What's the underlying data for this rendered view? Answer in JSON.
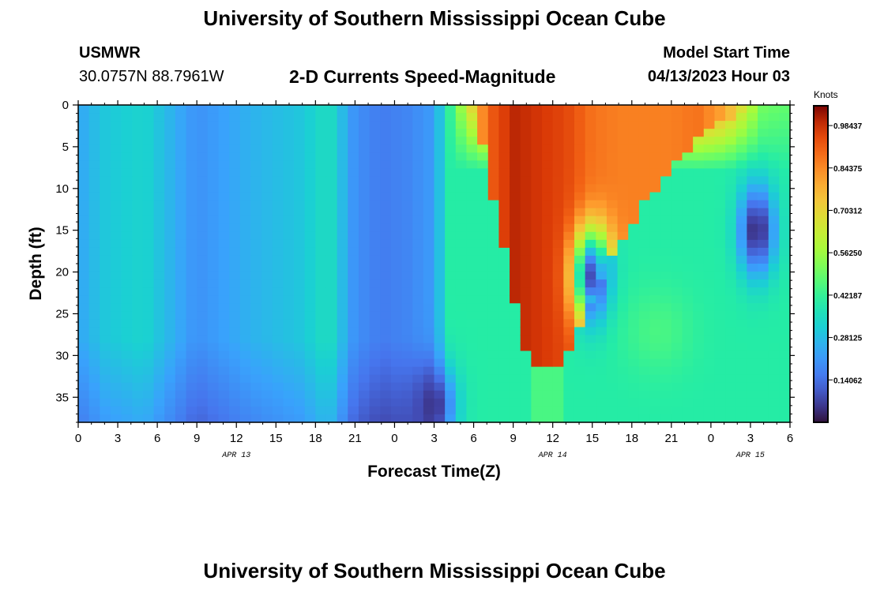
{
  "page": {
    "title": "University of Southern Mississippi Ocean Cube",
    "station": "USMWR",
    "coordinates": "30.0757N  88.7961W",
    "subtitle": "2-D Currents Speed-Magnitude",
    "model_start_label": "Model Start Time",
    "model_start_value": "04/13/2023 Hour 03",
    "footer_title": "University of Southern Mississippi Ocean Cube"
  },
  "chart_data": {
    "type": "heatmap",
    "title": "2-D Currents Speed-Magnitude",
    "xlabel": "Forecast Time(Z)",
    "ylabel": "Depth (ft)",
    "x_unit": "hours since 04/13 00Z",
    "xlim": [
      0,
      54
    ],
    "ylim": [
      38,
      0
    ],
    "y_reversed": true,
    "x_ticks": [
      0,
      3,
      6,
      9,
      12,
      15,
      18,
      21,
      24,
      27,
      30,
      33,
      36,
      39,
      42,
      45,
      48,
      51,
      54
    ],
    "x_tick_labels": [
      "0",
      "3",
      "6",
      "9",
      "12",
      "15",
      "18",
      "21",
      "0",
      "3",
      "6",
      "9",
      "12",
      "15",
      "18",
      "21",
      "0",
      "3",
      "6"
    ],
    "y_ticks": [
      0,
      5,
      10,
      15,
      20,
      25,
      30,
      35
    ],
    "y_tick_labels": [
      "0",
      "5",
      "10",
      "15",
      "20",
      "25",
      "30",
      "35"
    ],
    "date_labels": [
      {
        "x": 12,
        "label": "APR 13"
      },
      {
        "x": 36,
        "label": "APR 14"
      },
      {
        "x": 51,
        "label": "APR 15"
      }
    ],
    "colorbar": {
      "title": "Knots",
      "range": [
        0.0,
        1.05
      ],
      "ticks": [
        0.14062,
        0.28125,
        0.42187,
        0.5625,
        0.70312,
        0.84375,
        0.98437
      ],
      "tick_labels": [
        "0.14062",
        "0.28125",
        "0.42187",
        "0.56250",
        "0.70312",
        "0.84375",
        "0.98437"
      ],
      "colormap": "turbo"
    },
    "grid": false,
    "field_components": [
      {
        "kind": "base_x",
        "x": [
          0,
          2,
          5,
          9,
          13,
          17,
          19,
          21,
          23,
          25,
          27,
          29,
          31,
          33,
          35,
          37,
          39,
          41,
          43,
          45,
          47,
          49,
          51,
          52,
          54
        ],
        "v": [
          0.24,
          0.3,
          0.33,
          0.2,
          0.26,
          0.3,
          0.36,
          0.2,
          0.16,
          0.18,
          0.22,
          0.55,
          0.9,
          1.0,
          0.98,
          0.95,
          0.88,
          0.86,
          0.86,
          0.86,
          0.88,
          0.8,
          0.6,
          0.5,
          0.48
        ]
      },
      {
        "kind": "red_wedge_surface_to_depth",
        "top_x": [
          30,
          53
        ],
        "apex_x": 36,
        "apex_depth": 30
      },
      {
        "kind": "low_speed_core",
        "x": 27,
        "depth": 36,
        "value": 0.05
      },
      {
        "kind": "low_speed_core",
        "x": 39,
        "depth": 20.5,
        "value": 0.08
      },
      {
        "kind": "low_speed_core",
        "x": 51.5,
        "depth": 15,
        "value": 0.03
      },
      {
        "kind": "moderate_patch",
        "x": 44,
        "depth": 27,
        "value": 0.45
      }
    ]
  }
}
